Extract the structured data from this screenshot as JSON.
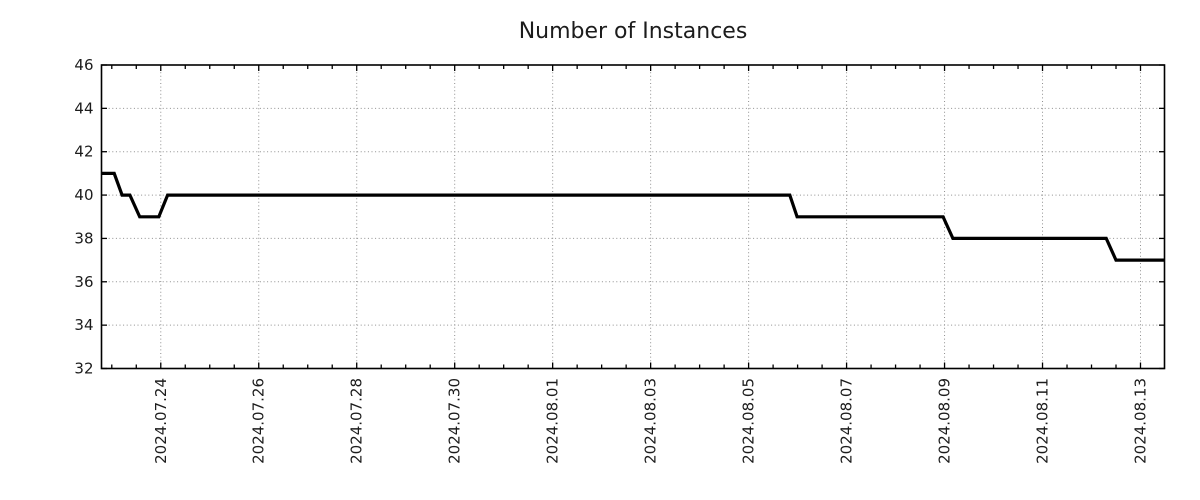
{
  "title": "Number of Instances",
  "colors": {
    "line": "#000000",
    "grid": "#8f8f8f",
    "axis": "#000000",
    "text": "#1c1c1c",
    "background": "#ffffff"
  },
  "chart_data": {
    "type": "line",
    "title": "Number of Instances",
    "legend": false,
    "grid": true,
    "x_axis": {
      "tick_labels": [
        "2024.07.24",
        "2024.07.26",
        "2024.07.28",
        "2024.07.30",
        "2024.08.01",
        "2024.08.03",
        "2024.08.05",
        "2024.08.07",
        "2024.08.09",
        "2024.08.11",
        "2024.08.13"
      ],
      "major_step_days": 2,
      "minor_step_days": 0.5,
      "range_days_rel_first_label": [
        -1.21,
        20.49
      ]
    },
    "y_axis": {
      "ticks": [
        46,
        44,
        42,
        40,
        38,
        36,
        34,
        32
      ],
      "range": [
        32,
        46
      ]
    },
    "series": [
      {
        "name": "instances",
        "points_day_value": [
          [
            -1.21,
            41
          ],
          [
            -0.95,
            41
          ],
          [
            -0.79,
            40
          ],
          [
            -0.63,
            40
          ],
          [
            -0.43,
            39
          ],
          [
            -0.04,
            39
          ],
          [
            0.14,
            40
          ],
          [
            12.84,
            40
          ],
          [
            12.99,
            39
          ],
          [
            15.97,
            39
          ],
          [
            16.17,
            38
          ],
          [
            19.3,
            38
          ],
          [
            19.5,
            37
          ],
          [
            20.49,
            37
          ]
        ],
        "steps_readable": [
          {
            "from": "2024-07-22 19:00",
            "value": 41
          },
          {
            "from": "2024-07-23 05:00",
            "value": 40
          },
          {
            "from": "2024-07-23 14:00",
            "value": 39
          },
          {
            "from": "2024-07-24 03:00",
            "value": 40
          },
          {
            "from": "2024-08-06 00:00",
            "value": 39
          },
          {
            "from": "2024-08-09 04:00",
            "value": 38
          },
          {
            "from": "2024-08-12 12:00",
            "value": 37
          }
        ]
      }
    ]
  }
}
